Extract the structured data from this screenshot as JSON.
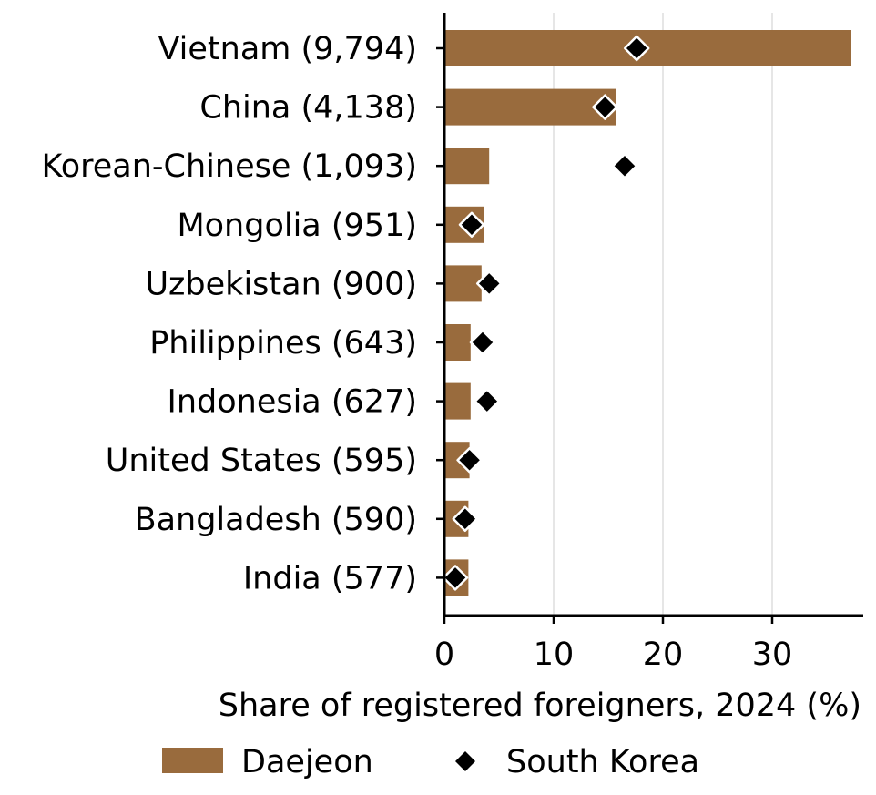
{
  "chart_data": {
    "type": "bar",
    "orientation": "horizontal",
    "categories": [
      "Vietnam (9,794)",
      "China (4,138)",
      "Korean-Chinese (1,093)",
      "Mongolia (951)",
      "Uzbekistan (900)",
      "Philippines (643)",
      "Indonesia (627)",
      "United States (595)",
      "Bangladesh (590)",
      "India (577)"
    ],
    "series": [
      {
        "name": "Daejeon",
        "kind": "bar",
        "color": "#996b3d",
        "values": [
          37.2,
          15.7,
          4.1,
          3.6,
          3.4,
          2.4,
          2.4,
          2.3,
          2.2,
          2.2
        ]
      },
      {
        "name": "South Korea",
        "kind": "marker",
        "marker": "diamond",
        "color": "#000000",
        "values": [
          17.6,
          14.7,
          16.5,
          2.5,
          4.1,
          3.5,
          3.9,
          2.3,
          1.9,
          1.0
        ]
      }
    ],
    "xlabel": "Share of registered foreigners, 2024 (%)",
    "xlim": [
      0,
      38
    ],
    "xticks": [
      "0",
      "10",
      "20",
      "30"
    ],
    "grid": "vertical",
    "legend_position": "bottom"
  }
}
